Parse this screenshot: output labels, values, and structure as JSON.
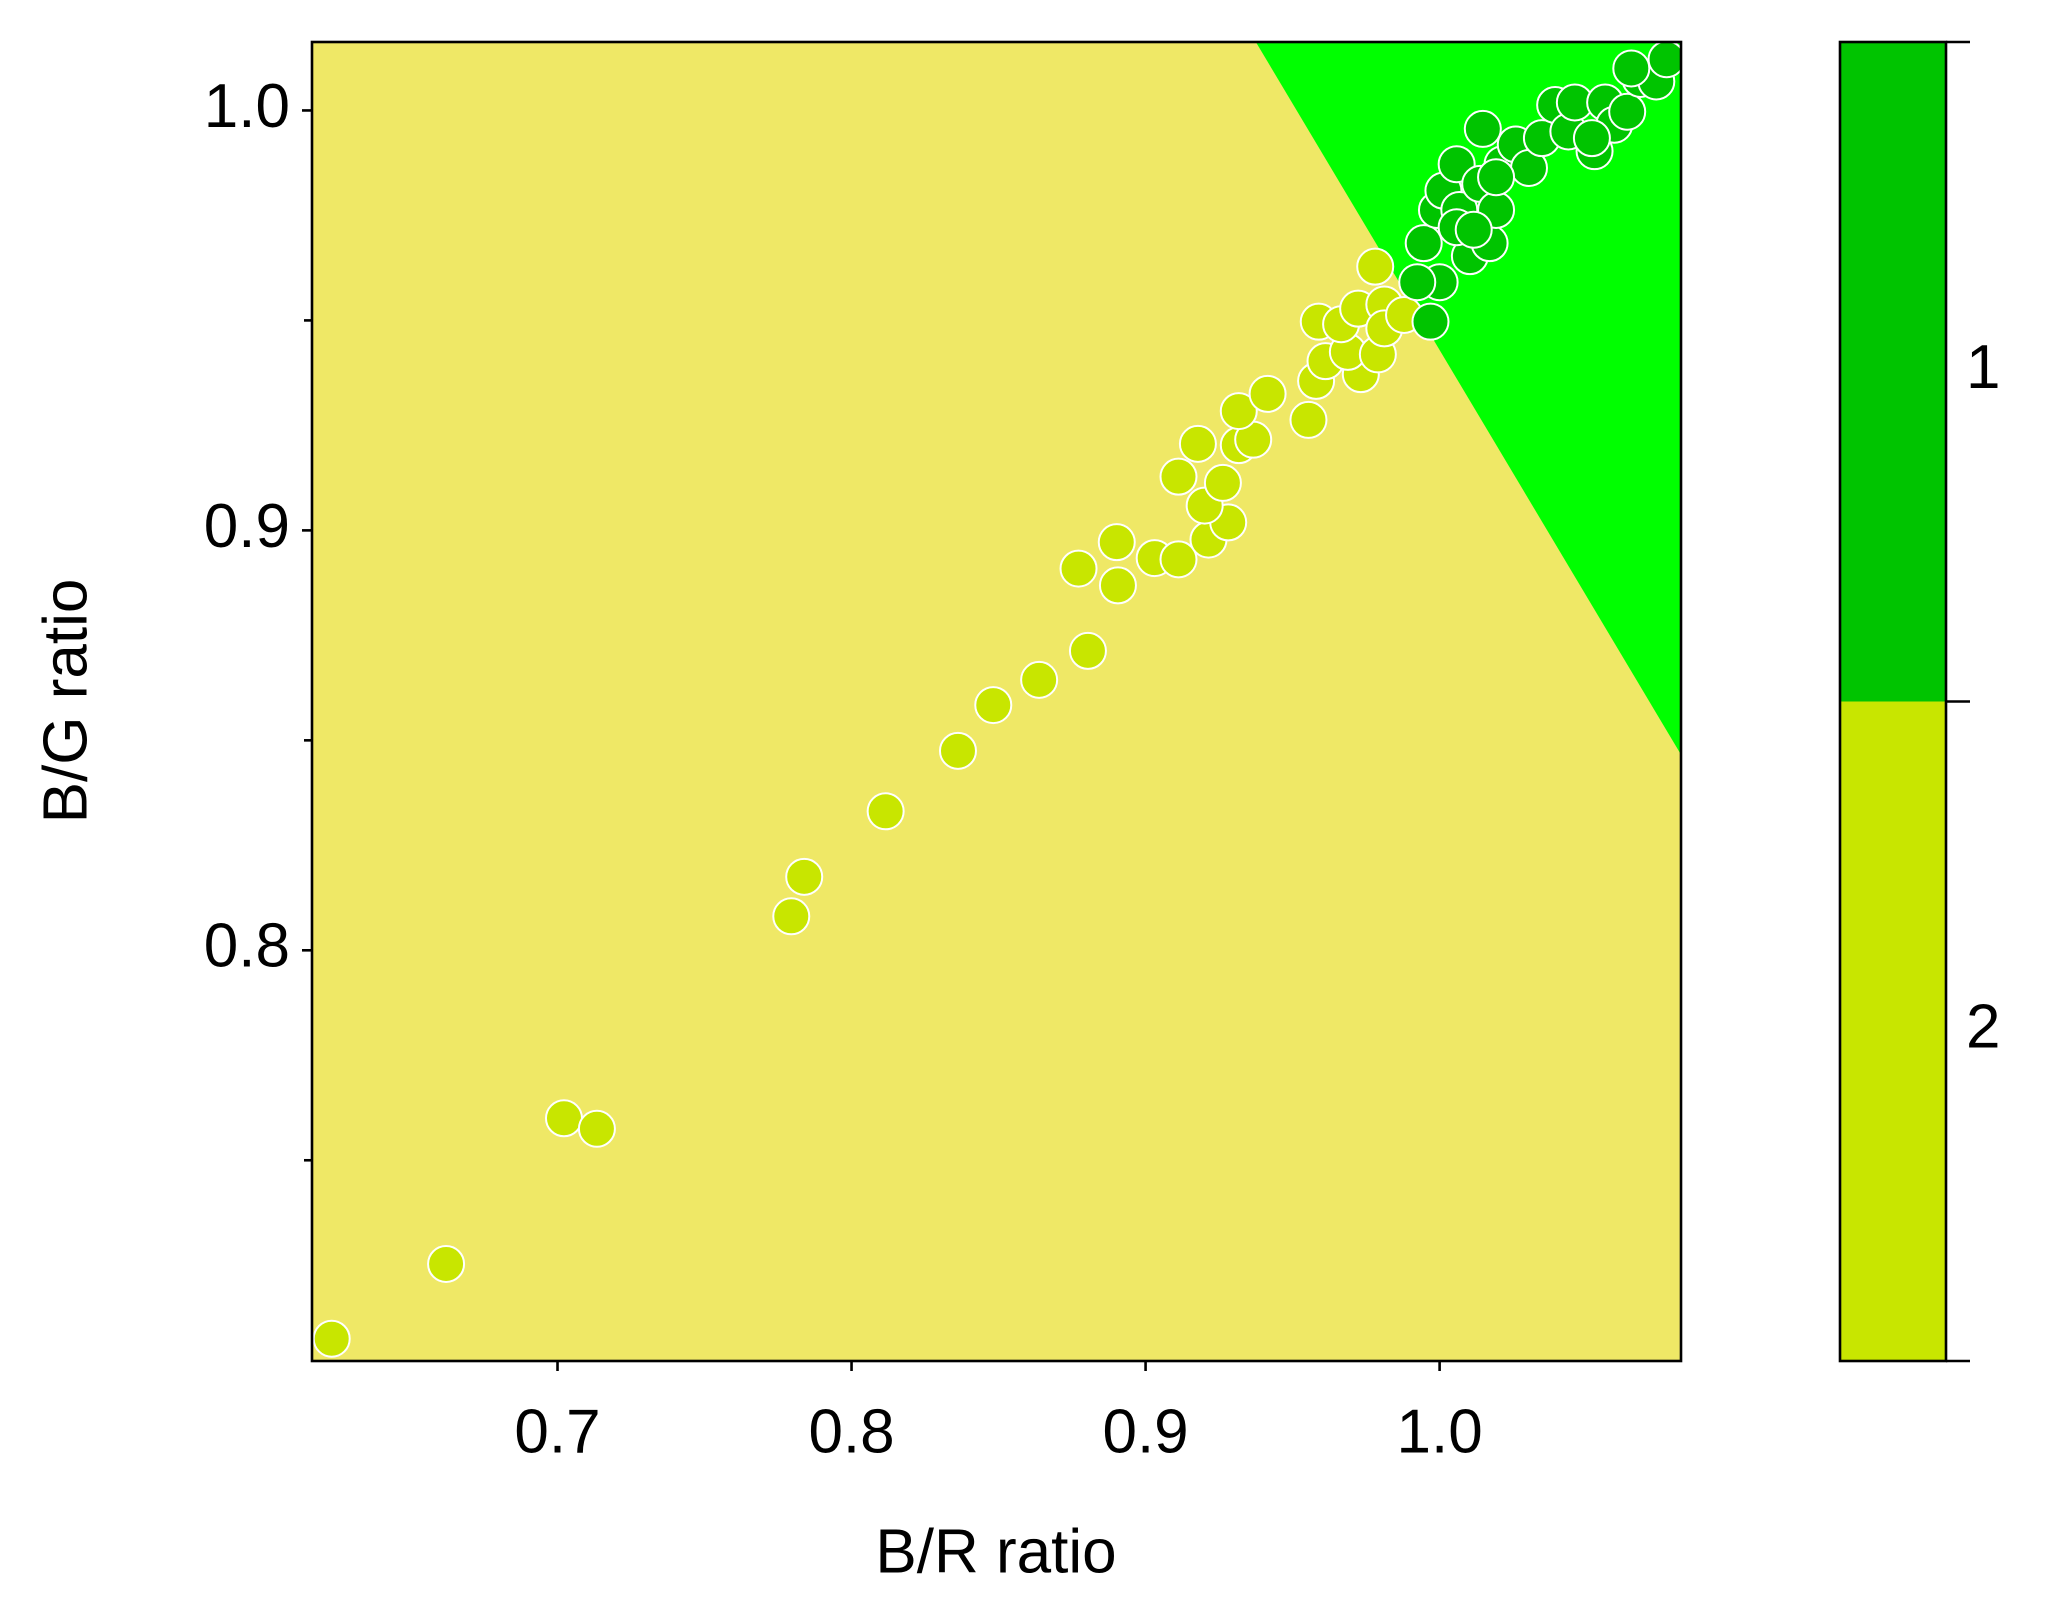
{
  "chart_data": {
    "type": "scatter",
    "xlabel": "B/R ratio",
    "ylabel": "B/G ratio",
    "xlim": [
      0.6165,
      1.0821
    ],
    "ylim": [
      0.7022,
      1.0163
    ],
    "xticks": [
      0.7,
      0.8,
      0.9,
      {
        "value": 1.0,
        "label": "1.0"
      }
    ],
    "yticks": [
      0.8,
      0.9,
      {
        "value": 1.0,
        "label": "1.0"
      }
    ],
    "yminorticks": [
      0.75,
      0.85,
      0.95
    ],
    "boundary": {
      "x": [
        0.9375,
        1.0821
      ],
      "y": [
        1.0163,
        0.8466
      ]
    },
    "series": [
      {
        "name": "1",
        "color": "#00c400",
        "region_color": "#00ff00",
        "x": [
          0.9969,
          1.0,
          0.9946,
          0.9991,
          1.0013,
          1.0067,
          1.0103,
          1.0058,
          1.0138,
          1.017,
          1.0192,
          1.0214,
          1.0147,
          1.0259,
          1.0304,
          1.0348,
          1.0393,
          1.0438,
          1.046,
          1.0527,
          1.0563,
          1.0594,
          1.0638,
          1.0683,
          1.0737,
          1.0772,
          1.0652,
          1.0058,
          1.0192,
          1.0518,
          0.9924,
          1.0116
        ],
        "values": [
          0.9497,
          0.9591,
          0.9684,
          0.9763,
          0.9809,
          0.9763,
          0.9653,
          0.9872,
          0.9825,
          0.9684,
          0.9763,
          0.9872,
          0.9956,
          0.9919,
          0.9863,
          0.9934,
          1.0013,
          0.995,
          1.0019,
          0.9903,
          1.0019,
          0.9966,
          0.9997,
          1.0075,
          1.0069,
          1.0122,
          1.01,
          0.9722,
          0.9841,
          0.9934,
          0.9591,
          0.9716
        ]
      },
      {
        "name": "2",
        "color": "#c8e600",
        "region_color": "#efe866",
        "x": [
          0.6232,
          0.6621,
          0.7022,
          0.7134,
          0.7795,
          0.7839,
          0.8116,
          0.8362,
          0.8482,
          0.8638,
          0.8804,
          0.8772,
          0.8906,
          0.8902,
          0.9031,
          0.9112,
          0.9112,
          0.9214,
          0.9281,
          0.9201,
          0.9263,
          0.9178,
          0.9317,
          0.9366,
          0.9317,
          0.9415,
          0.9554,
          0.958,
          0.9612,
          0.9732,
          0.9688,
          0.979,
          0.9589,
          0.9665,
          0.9723,
          0.9812,
          0.9812,
          0.9781,
          0.9879
        ],
        "values": [
          0.7075,
          0.7253,
          0.76,
          0.7575,
          0.8081,
          0.8175,
          0.8331,
          0.8475,
          0.8584,
          0.8644,
          0.8713,
          0.8909,
          0.8869,
          0.8972,
          0.8934,
          0.8931,
          0.9128,
          0.8978,
          0.9019,
          0.9059,
          0.9113,
          0.9206,
          0.9203,
          0.9216,
          0.9284,
          0.9325,
          0.9263,
          0.9356,
          0.9403,
          0.9372,
          0.9425,
          0.9419,
          0.9497,
          0.9491,
          0.9528,
          0.9538,
          0.9481,
          0.9628,
          0.9513
        ]
      }
    ]
  }
}
